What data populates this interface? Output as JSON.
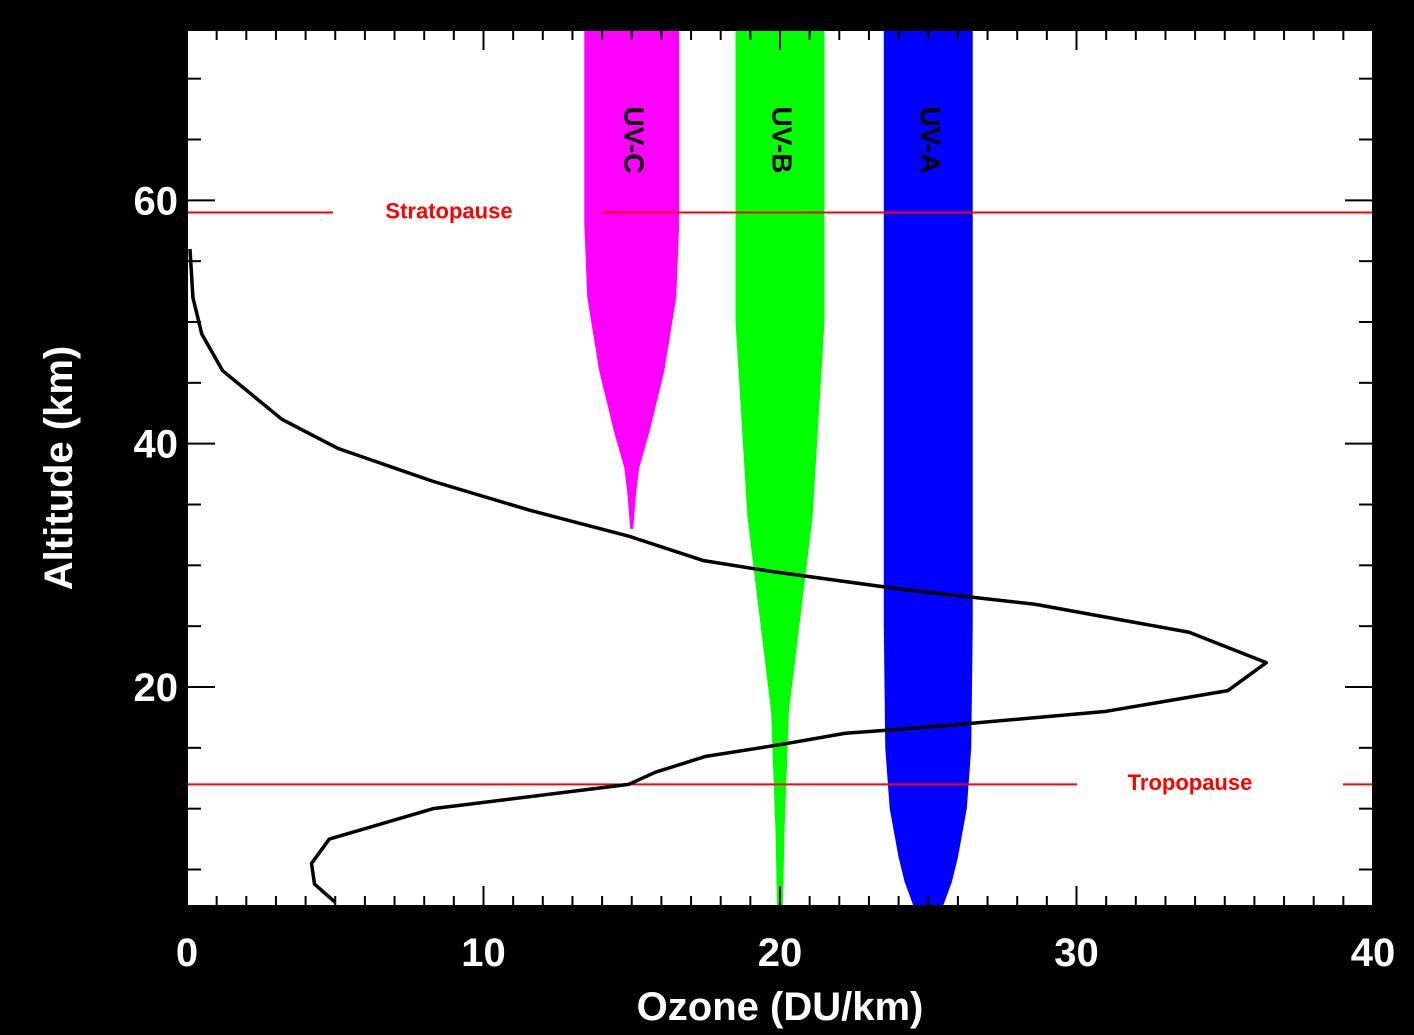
{
  "chart_data": {
    "type": "line",
    "xlabel": "Ozone (DU/km)",
    "ylabel": "Altitude (km)",
    "xlim": [
      0,
      40
    ],
    "ylim": [
      2,
      74
    ],
    "x_ticks": [
      0,
      10,
      20,
      30,
      40
    ],
    "y_ticks": [
      20,
      40,
      60
    ],
    "x_tick_labels": [
      "0",
      "10",
      "20",
      "30",
      "40"
    ],
    "y_tick_labels": [
      "20",
      "40",
      "60"
    ],
    "grid": false,
    "series": [
      {
        "color": "#000000",
        "points": [
          [
            5.0,
            2.3
          ],
          [
            4.3,
            3.8
          ],
          [
            4.2,
            5.5
          ],
          [
            4.8,
            7.5
          ],
          [
            8.3,
            10.0
          ],
          [
            14.9,
            12.0
          ],
          [
            15.8,
            13.0
          ],
          [
            17.5,
            14.3
          ],
          [
            20.1,
            15.3
          ],
          [
            22.2,
            16.2
          ],
          [
            25.0,
            16.7
          ],
          [
            31.0,
            18.0
          ],
          [
            35.1,
            19.7
          ],
          [
            36.4,
            22.0
          ],
          [
            33.8,
            24.5
          ],
          [
            28.6,
            26.8
          ],
          [
            24.2,
            28.0
          ],
          [
            19.7,
            29.5
          ],
          [
            17.4,
            30.4
          ],
          [
            14.9,
            32.4
          ],
          [
            11.6,
            34.5
          ],
          [
            8.3,
            36.9
          ],
          [
            5.1,
            39.6
          ],
          [
            3.2,
            42.0
          ],
          [
            1.2,
            46.0
          ],
          [
            0.5,
            49.0
          ],
          [
            0.2,
            52.0
          ],
          [
            0.1,
            56.0
          ]
        ]
      }
    ],
    "bands": [
      {
        "label": "UV-C",
        "color": "#ff00ff",
        "top": 74,
        "bottom": 33,
        "profile": [
          [
            74,
            13.4,
            16.6
          ],
          [
            58,
            13.4,
            16.6
          ],
          [
            52,
            13.5,
            16.5
          ],
          [
            46,
            13.9,
            16.1
          ],
          [
            41,
            14.4,
            15.6
          ],
          [
            38,
            14.75,
            15.25
          ],
          [
            36,
            14.85,
            15.15
          ],
          [
            33,
            14.95,
            15.05
          ]
        ]
      },
      {
        "label": "UV-B",
        "color": "#00ff00",
        "top": 74,
        "bottom": 2,
        "profile": [
          [
            74,
            18.5,
            21.5
          ],
          [
            50,
            18.5,
            21.5
          ],
          [
            42,
            18.7,
            21.3
          ],
          [
            34,
            18.9,
            21.1
          ],
          [
            26,
            19.3,
            20.7
          ],
          [
            18,
            19.7,
            20.3
          ],
          [
            8,
            19.85,
            20.15
          ],
          [
            2,
            19.9,
            20.1
          ]
        ]
      },
      {
        "label": "UV-A",
        "color": "#0000ff",
        "top": 74,
        "bottom": 2,
        "profile": [
          [
            74,
            23.5,
            26.5
          ],
          [
            25,
            23.5,
            26.5
          ],
          [
            15,
            23.55,
            26.45
          ],
          [
            10,
            23.7,
            26.3
          ],
          [
            6,
            24.0,
            26.0
          ],
          [
            4,
            24.2,
            25.8
          ],
          [
            2,
            24.5,
            25.5
          ]
        ]
      }
    ],
    "reference_lines": [
      {
        "label": "Stratopause",
        "y": 59,
        "color": "#ff0000"
      },
      {
        "label": "Tropopause",
        "y": 12,
        "color": "#ff0000"
      }
    ]
  }
}
